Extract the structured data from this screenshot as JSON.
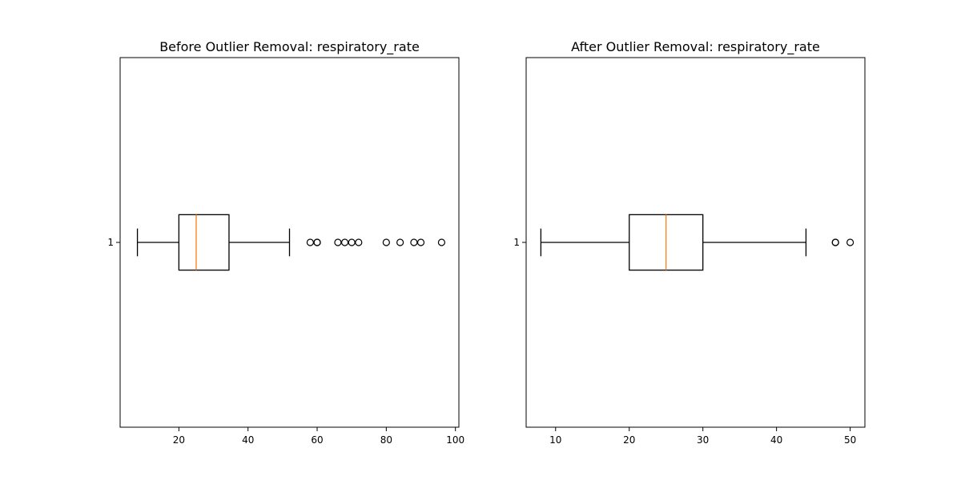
{
  "chart_data": [
    {
      "type": "box",
      "orientation": "horizontal",
      "title": "Before Outlier Removal: respiratory_rate",
      "xlabel": "",
      "ylabel": "",
      "xlim": [
        3,
        101
      ],
      "xticks": [
        20,
        40,
        60,
        80,
        100
      ],
      "yticks": [
        1
      ],
      "ytick_labels": [
        "1"
      ],
      "grid": false,
      "box": {
        "position": 1,
        "whisker_low": 8,
        "q1": 20,
        "median": 25,
        "q3": 34.5,
        "whisker_high": 52,
        "outliers": [
          58,
          60,
          60,
          66,
          68,
          70,
          72,
          80,
          84,
          88,
          90,
          96
        ]
      },
      "colors": {
        "box": "#000000",
        "median": "#ff7f0e"
      }
    },
    {
      "type": "box",
      "orientation": "horizontal",
      "title": "After Outlier Removal: respiratory_rate",
      "xlabel": "",
      "ylabel": "",
      "xlim": [
        6,
        52
      ],
      "xticks": [
        10,
        20,
        30,
        40,
        50
      ],
      "yticks": [
        1
      ],
      "ytick_labels": [
        "1"
      ],
      "grid": false,
      "box": {
        "position": 1,
        "whisker_low": 8,
        "q1": 20,
        "median": 25,
        "q3": 30,
        "whisker_high": 44,
        "outliers": [
          48,
          48,
          50
        ]
      },
      "colors": {
        "box": "#000000",
        "median": "#ff7f0e"
      }
    }
  ]
}
